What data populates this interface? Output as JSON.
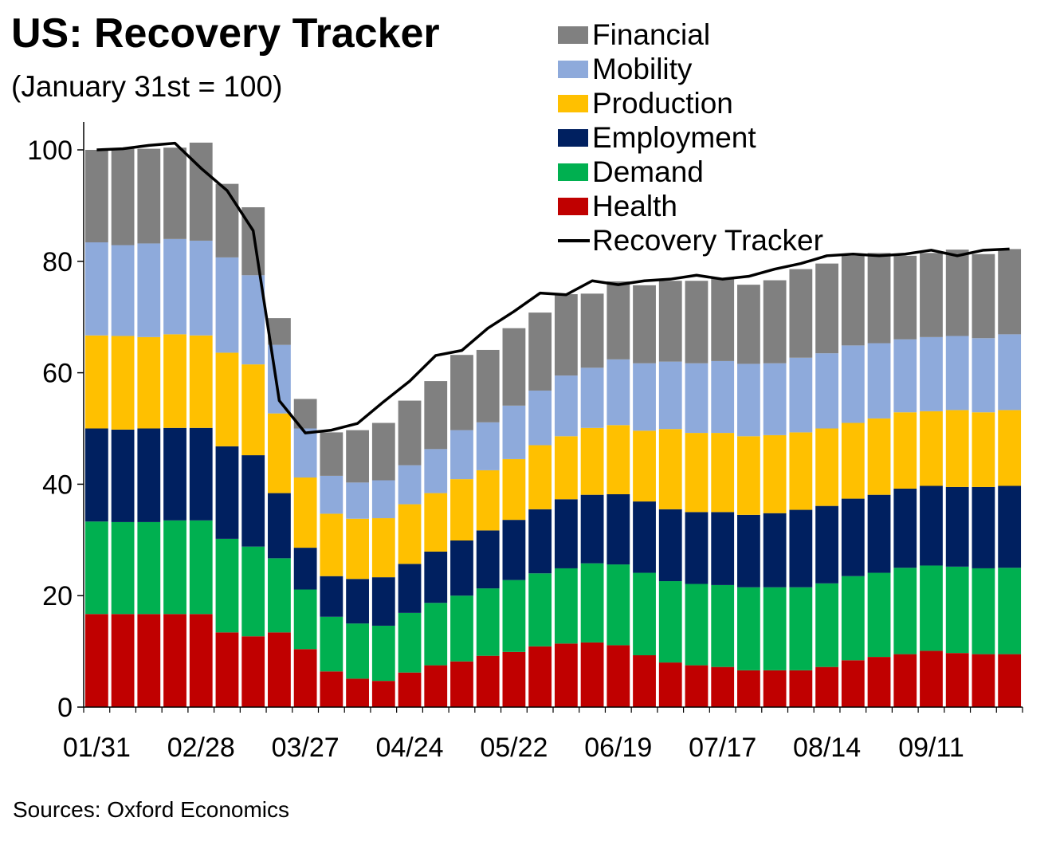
{
  "title": "US: Recovery Tracker",
  "subtitle": "(January 31st = 100)",
  "source": "Sources: Oxford Economics",
  "chart_data": {
    "type": "bar",
    "stacked": true,
    "title": "US: Recovery Tracker",
    "subtitle": "(January 31st = 100)",
    "ylim": [
      0,
      105
    ],
    "yticks": [
      0,
      20,
      40,
      60,
      80,
      100
    ],
    "xtick_labels": [
      "01/31",
      "02/28",
      "03/27",
      "04/24",
      "05/22",
      "06/19",
      "07/17",
      "08/14",
      "09/11"
    ],
    "xtick_indices": [
      0,
      4,
      8,
      12,
      16,
      20,
      24,
      28,
      32
    ],
    "categories": [
      "01/31",
      "02/07",
      "02/14",
      "02/21",
      "02/28",
      "03/06",
      "03/13",
      "03/20",
      "03/27",
      "04/03",
      "04/10",
      "04/17",
      "04/24",
      "05/01",
      "05/08",
      "05/15",
      "05/22",
      "05/29",
      "06/05",
      "06/12",
      "06/19",
      "06/26",
      "07/03",
      "07/10",
      "07/17",
      "07/24",
      "07/31",
      "08/07",
      "08/14",
      "08/21",
      "08/28",
      "09/04",
      "09/11",
      "09/18",
      "09/25",
      "10/02"
    ],
    "series": [
      {
        "name": "Health",
        "color": "#c00000",
        "values": [
          16.7,
          16.7,
          16.7,
          16.7,
          16.7,
          13.4,
          12.7,
          13.4,
          10.4,
          6.4,
          5.1,
          4.7,
          6.2,
          7.5,
          8.2,
          9.2,
          9.9,
          10.9,
          11.4,
          11.6,
          11.1,
          9.3,
          8.0,
          7.5,
          7.2,
          6.6,
          6.6,
          6.6,
          7.2,
          8.4,
          9.0,
          9.5,
          10.1,
          9.7,
          9.5,
          9.5
        ]
      },
      {
        "name": "Demand",
        "color": "#00b050",
        "values": [
          16.6,
          16.5,
          16.5,
          16.8,
          16.8,
          16.8,
          16.1,
          13.3,
          10.7,
          9.8,
          9.9,
          9.9,
          10.7,
          11.2,
          11.8,
          12.1,
          12.9,
          13.1,
          13.5,
          14.2,
          14.5,
          14.8,
          14.6,
          14.6,
          14.7,
          14.9,
          14.9,
          14.9,
          15.0,
          15.1,
          15.1,
          15.5,
          15.3,
          15.5,
          15.4,
          15.5
        ]
      },
      {
        "name": "Employment",
        "color": "#002060",
        "values": [
          16.7,
          16.6,
          16.8,
          16.6,
          16.6,
          16.6,
          16.4,
          11.7,
          7.5,
          7.3,
          8.0,
          8.7,
          8.8,
          9.2,
          9.9,
          10.4,
          10.8,
          11.5,
          12.4,
          12.3,
          12.6,
          12.8,
          12.9,
          12.9,
          13.1,
          13.0,
          13.3,
          13.9,
          13.9,
          13.9,
          14.0,
          14.2,
          14.3,
          14.3,
          14.6,
          14.7
        ]
      },
      {
        "name": "Production",
        "color": "#ffc000",
        "values": [
          16.7,
          16.8,
          16.4,
          16.8,
          16.6,
          16.8,
          16.3,
          14.3,
          12.6,
          11.2,
          10.8,
          10.6,
          10.7,
          10.5,
          11.0,
          10.8,
          10.9,
          11.5,
          11.3,
          12.0,
          12.4,
          12.7,
          14.4,
          14.2,
          14.2,
          14.1,
          14.0,
          13.9,
          13.9,
          13.6,
          13.7,
          13.7,
          13.4,
          13.8,
          13.4,
          13.6
        ]
      },
      {
        "name": "Mobility",
        "color": "#8eaadb",
        "values": [
          16.7,
          16.3,
          16.8,
          17.1,
          17.0,
          17.1,
          16.0,
          12.3,
          8.8,
          6.8,
          6.5,
          6.8,
          7.0,
          7.9,
          8.8,
          8.6,
          9.6,
          9.8,
          10.9,
          10.8,
          11.8,
          12.1,
          12.1,
          12.5,
          12.9,
          13.0,
          12.9,
          13.4,
          13.5,
          13.9,
          13.5,
          13.1,
          13.3,
          13.3,
          13.3,
          13.6
        ]
      },
      {
        "name": "Financial",
        "color": "#808080",
        "values": [
          16.6,
          17.3,
          17.0,
          16.4,
          17.6,
          13.2,
          12.2,
          4.8,
          5.3,
          7.8,
          9.4,
          10.3,
          11.6,
          12.2,
          13.5,
          13.0,
          13.9,
          14.0,
          14.6,
          13.3,
          14.0,
          14.0,
          14.5,
          14.8,
          14.8,
          14.2,
          14.9,
          15.9,
          16.1,
          16.1,
          16.2,
          15.0,
          15.1,
          15.5,
          15.1,
          15.3
        ]
      },
      {
        "name": "Recovery Tracker",
        "type": "line",
        "color": "#000000",
        "values": [
          100,
          100.2,
          100.8,
          101.2,
          96.7,
          92.7,
          85.5,
          55.0,
          49.2,
          49.7,
          50.9,
          54.8,
          58.5,
          63.1,
          64.0,
          68.0,
          71.0,
          74.3,
          74.0,
          76.5,
          75.8,
          76.5,
          76.8,
          77.5,
          76.8,
          77.3,
          78.6,
          79.6,
          81.0,
          81.3,
          81.0,
          81.3,
          82.0,
          81.0,
          82.0,
          82.2
        ]
      }
    ],
    "legend": {
      "placement": "top-right",
      "entries": [
        "Financial",
        "Mobility",
        "Production",
        "Employment",
        "Demand",
        "Health",
        "Recovery Tracker"
      ]
    },
    "grid": false
  }
}
